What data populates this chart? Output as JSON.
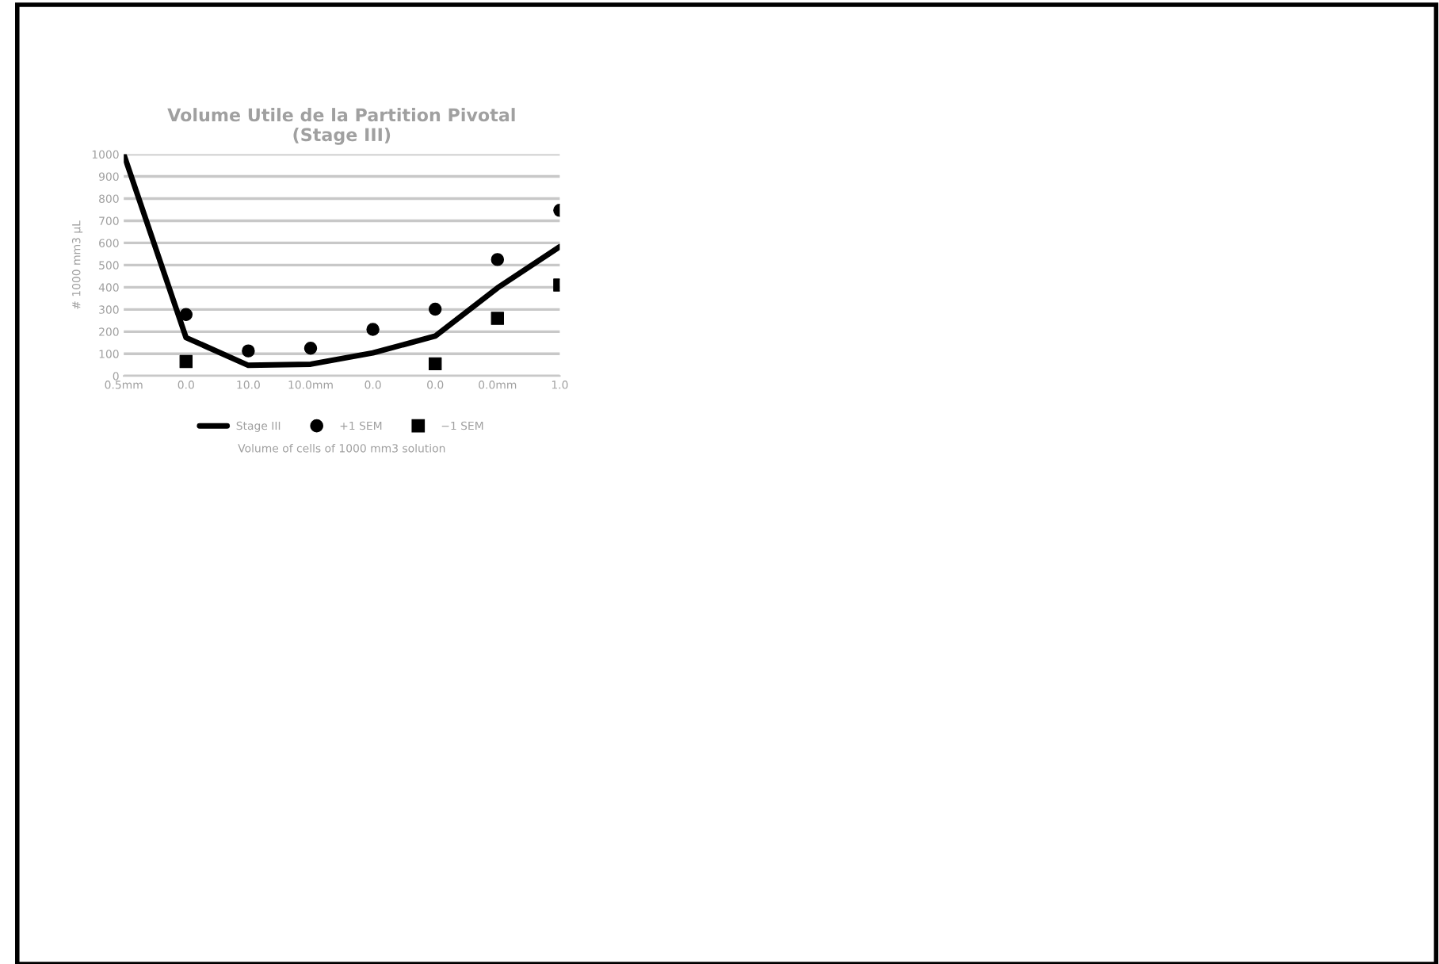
{
  "chart_data": {
    "type": "line",
    "title": "Volume Utile de la Partition Pivotal\n(Stage III)",
    "ylabel": "# 1000 mm3 µL",
    "xlabel": "Volume of cells of 1000 mm3 solution",
    "categories": [
      "0.5mm",
      "0.0",
      "10.0",
      "10.0mm",
      "0.0",
      "0.0",
      "0.0mm",
      "1.0"
    ],
    "series": [
      {
        "name": "Stage III",
        "color": "#000000",
        "marker": "none",
        "values": [
          1000,
          173,
          48,
          53,
          104,
          180,
          397,
          583
        ]
      },
      {
        "name": "+1 SEM",
        "type": "scatter",
        "color": "#000000",
        "marker": "circle",
        "values": [
          null,
          277,
          113,
          125,
          210,
          301,
          525,
          747
        ]
      },
      {
        "name": "−1 SEM",
        "type": "scatter",
        "color": "#000000",
        "marker": "square",
        "values": [
          null,
          65,
          null,
          null,
          null,
          55,
          260,
          410
        ]
      }
    ],
    "ylim": [
      0,
      1000
    ],
    "yticks": [
      0,
      100,
      200,
      300,
      400,
      500,
      600,
      700,
      800,
      900,
      1000
    ],
    "grid": "y",
    "legend": "bottom"
  }
}
